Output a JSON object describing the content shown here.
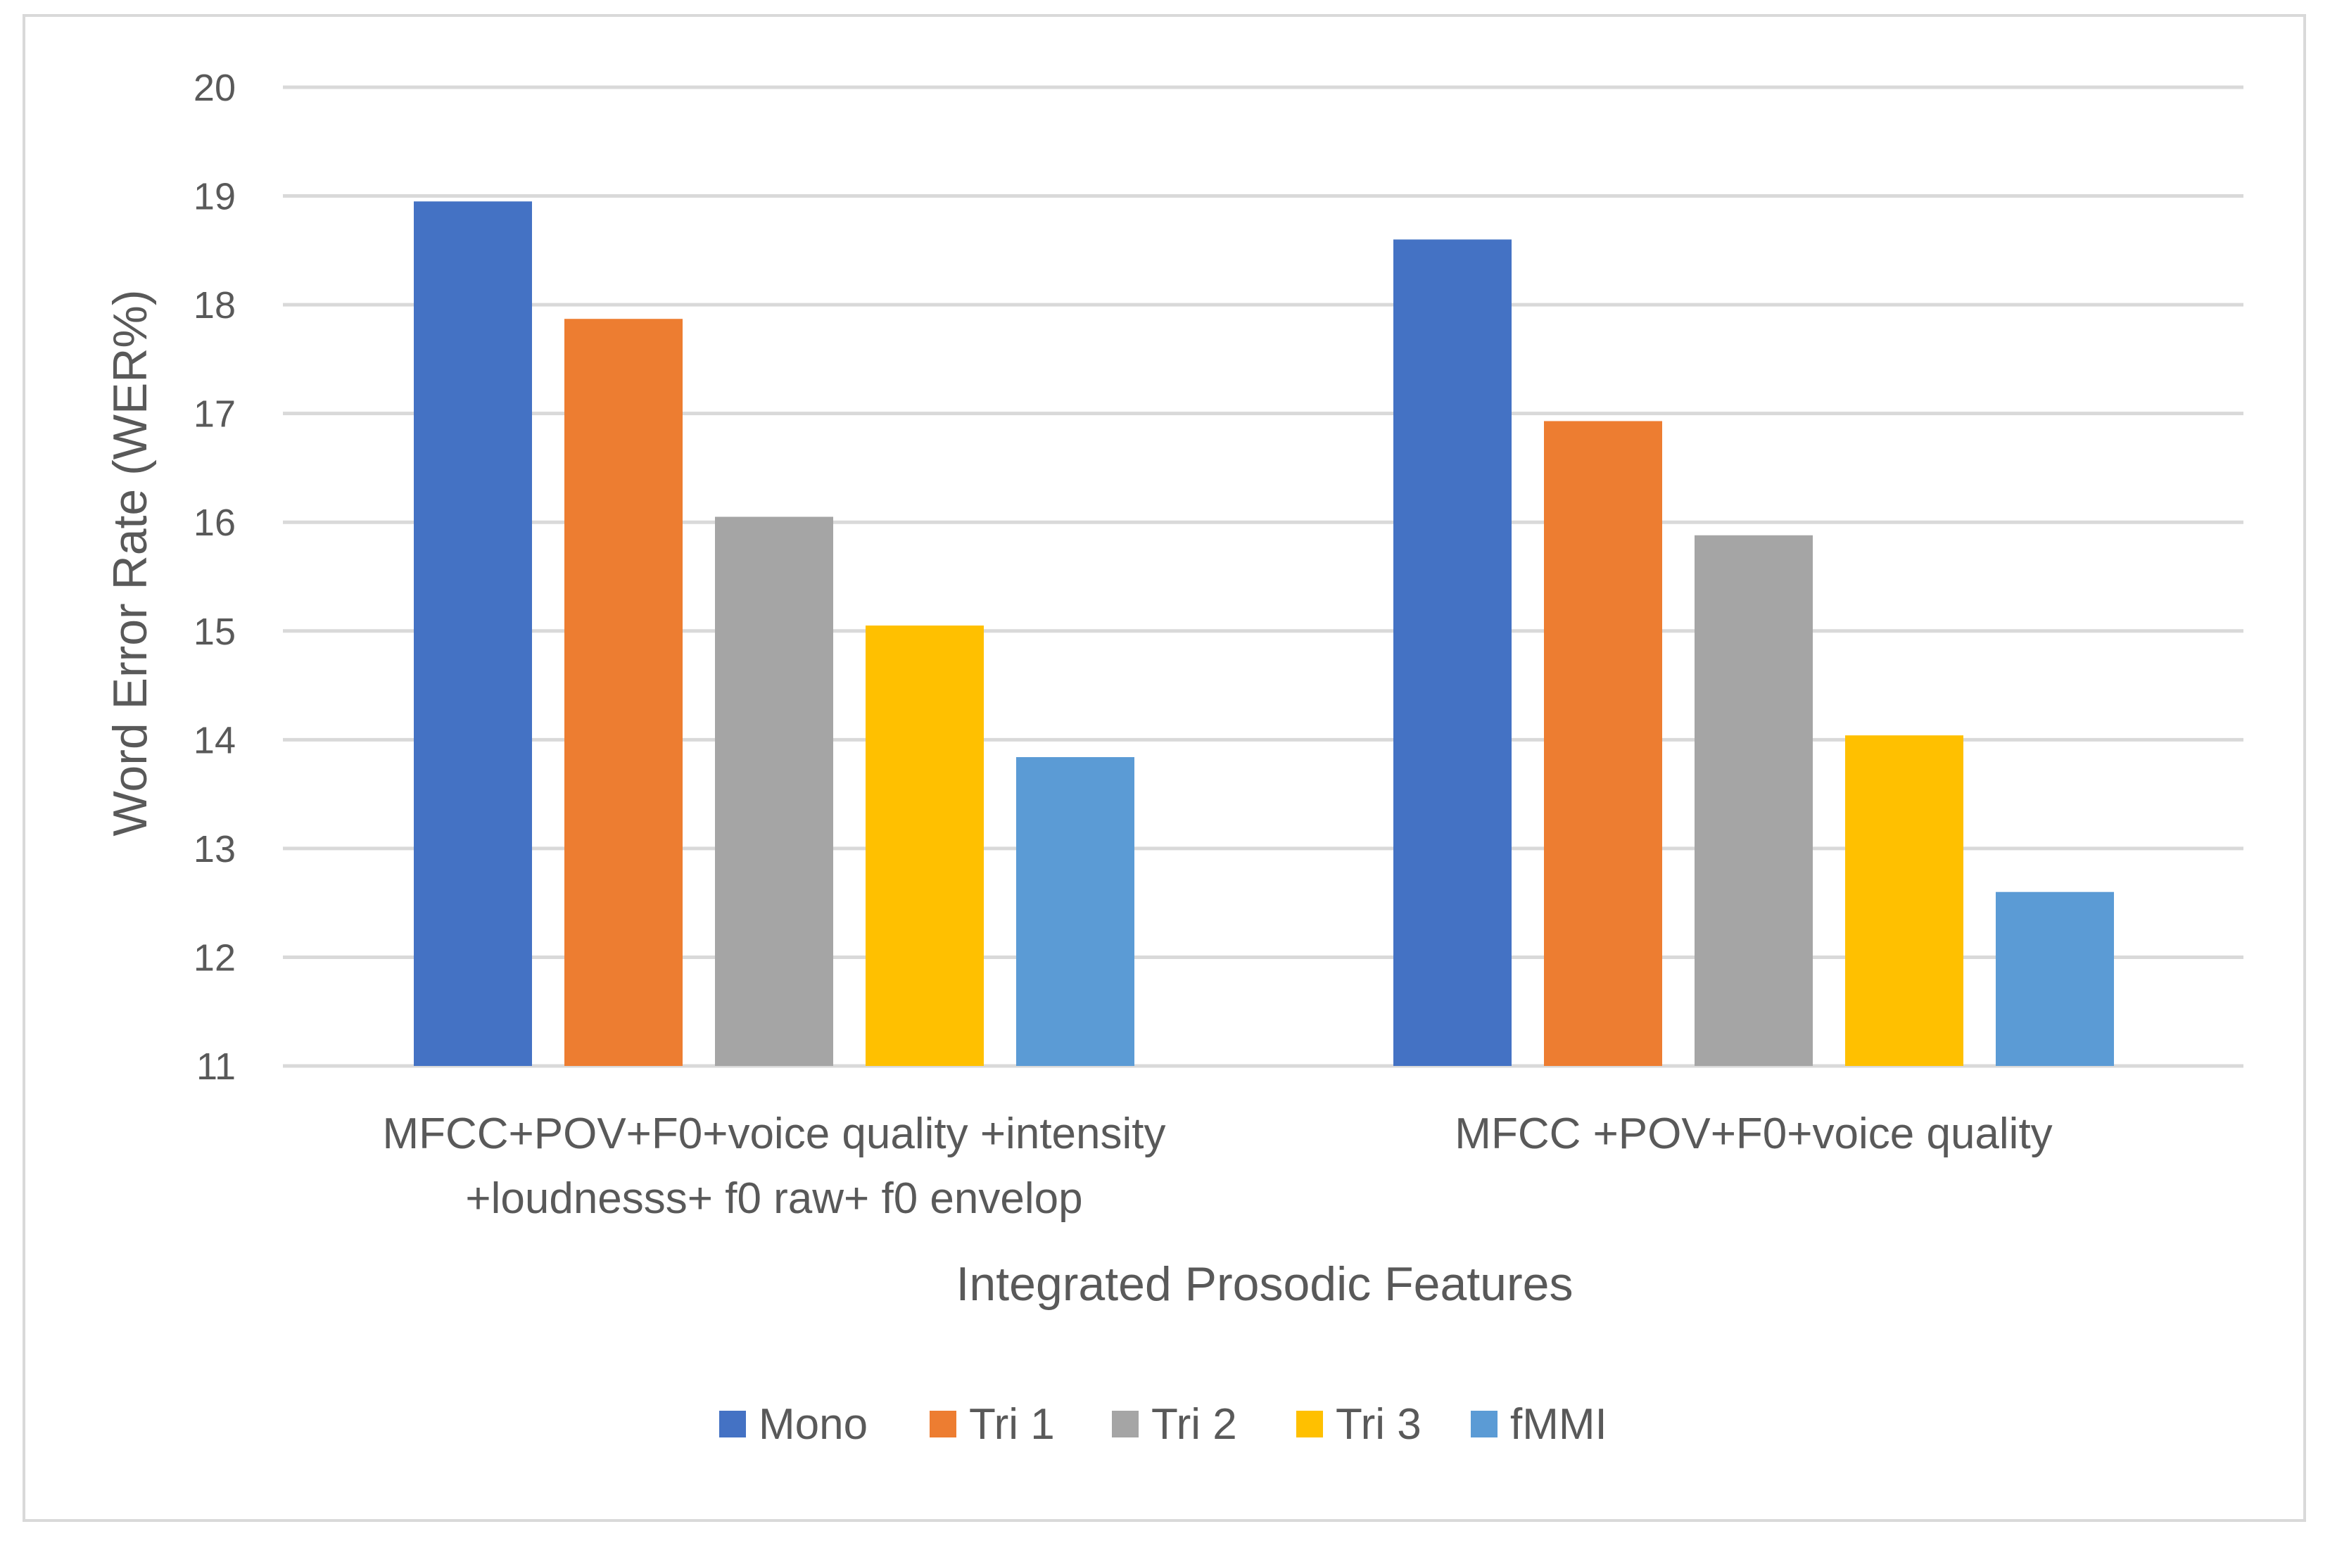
{
  "chart_data": {
    "type": "bar",
    "title": "",
    "xlabel": "Integrated Prosodic Features",
    "ylabel": "Word Error Rate (WER%)",
    "ylim": [
      11,
      20
    ],
    "yticks": [
      11,
      12,
      13,
      14,
      15,
      16,
      17,
      18,
      19,
      20
    ],
    "grid": true,
    "legend_position": "bottom",
    "categories": [
      [
        "MFCC+POV+F0+voice quality +intensity",
        "+loudnesss+ f0 raw+ f0 envelop"
      ],
      [
        "MFCC +POV+F0+voice quality"
      ]
    ],
    "series": [
      {
        "name": "Mono",
        "color": "#4472C4",
        "values": [
          18.95,
          18.6
        ]
      },
      {
        "name": "Tri 1",
        "color": "#ED7D31",
        "values": [
          17.87,
          16.93
        ]
      },
      {
        "name": "Tri 2",
        "color": "#A5A5A5",
        "values": [
          16.05,
          15.88
        ]
      },
      {
        "name": "Tri 3",
        "color": "#FFC000",
        "values": [
          15.05,
          14.04
        ]
      },
      {
        "name": "fMMI",
        "color": "#5B9BD5",
        "values": [
          13.84,
          12.6
        ]
      }
    ]
  }
}
